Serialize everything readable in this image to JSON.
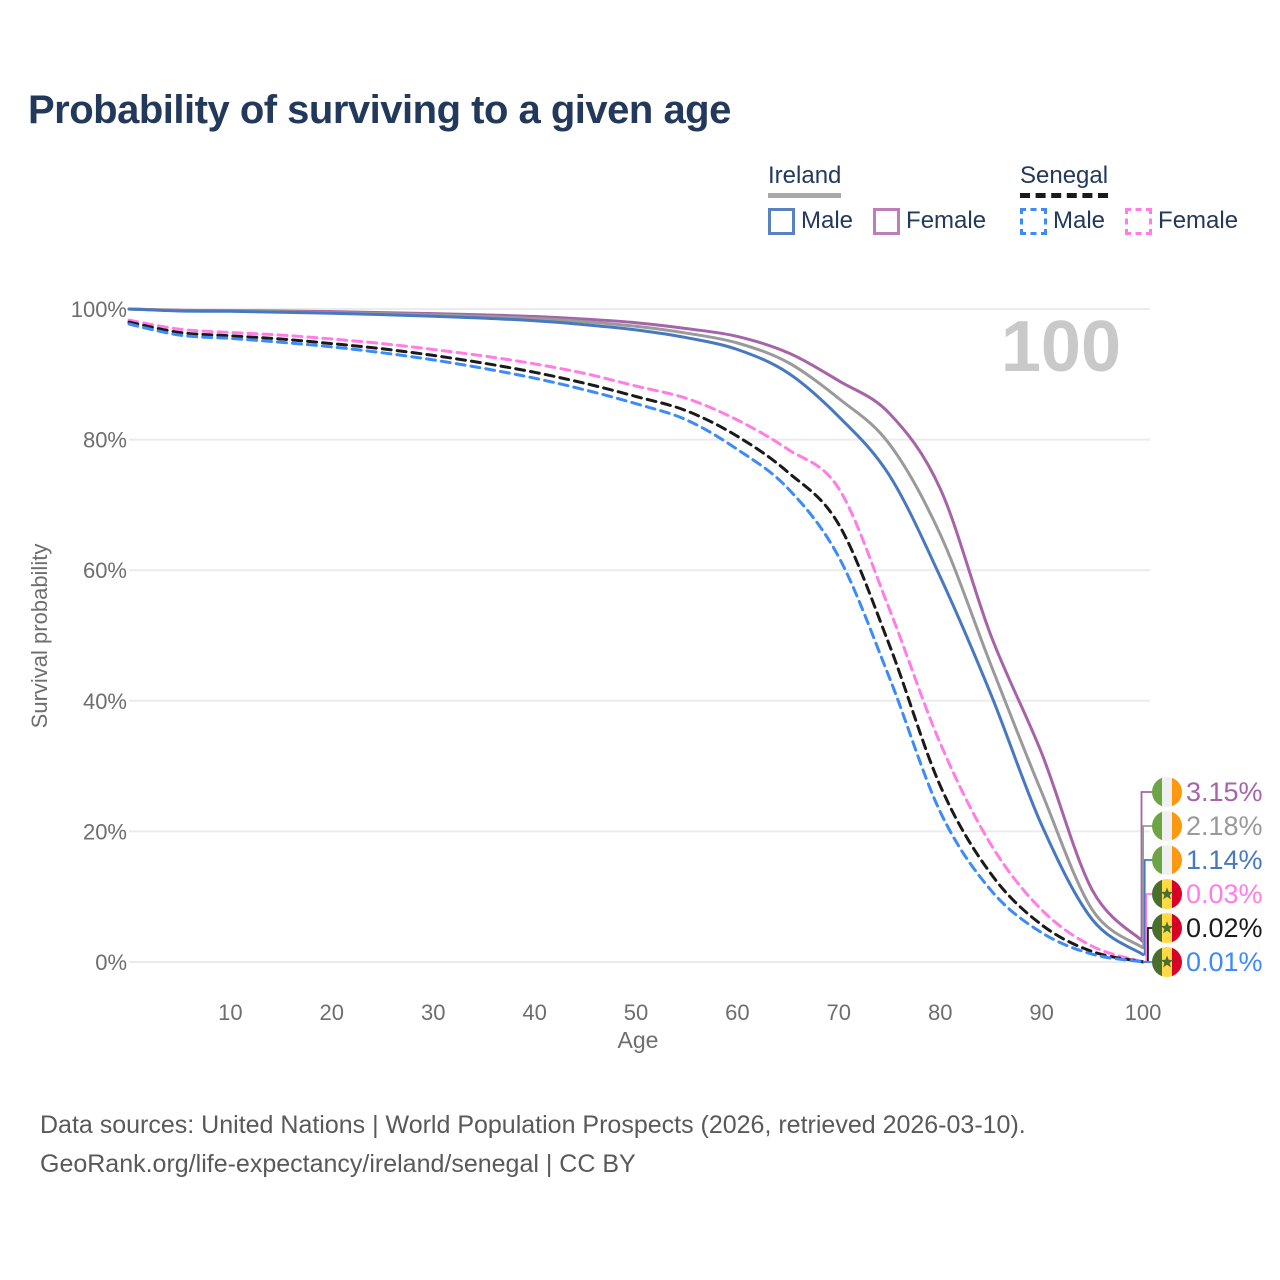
{
  "title": "Probability of surviving to a given age",
  "watermark": "100",
  "legend": {
    "ireland": {
      "header": "Ireland",
      "male": "Male",
      "female": "Female"
    },
    "senegal": {
      "header": "Senegal",
      "male": "Male",
      "female": "Female"
    }
  },
  "footer": {
    "line1": "Data sources: United Nations | World Population Prospects (2026, retrieved 2026-03-10).",
    "line2": "GeoRank.org/life-expectancy/ireland/senegal | CC BY"
  },
  "colors": {
    "title_text": "#22395c",
    "axis_text": "#6e6e6e",
    "grid": "#ebebeb",
    "watermark": "#c9c9c9",
    "footer_text": "#595959",
    "ireland_rule": "#a9a9a9",
    "senegal_rule": "#1a1a1a"
  },
  "chart_data": {
    "type": "line",
    "title": "Probability of surviving to a given age",
    "xlabel": "Age",
    "ylabel": "Survival probability",
    "xlim": [
      0,
      100
    ],
    "ylim": [
      0,
      100
    ],
    "x_ticks": [
      10,
      20,
      30,
      40,
      50,
      60,
      70,
      80,
      90,
      100
    ],
    "y_ticks": [
      0,
      20,
      40,
      60,
      80,
      100
    ],
    "y_tick_labels": [
      "0%",
      "20%",
      "40%",
      "60%",
      "80%",
      "100%"
    ],
    "grid": "horizontal",
    "legend_position": "top-right",
    "watermark_max_age": "100",
    "x": [
      0,
      5,
      10,
      15,
      20,
      25,
      30,
      35,
      40,
      45,
      50,
      55,
      60,
      65,
      70,
      75,
      80,
      85,
      90,
      95,
      100
    ],
    "series": [
      {
        "id": "ireland-female",
        "name": "Ireland Female",
        "country": "Ireland",
        "sex": "Female",
        "line_style": "solid",
        "color": "#a763a8",
        "flag": "ie",
        "end_label": "3.15%",
        "values": [
          100,
          99.8,
          99.75,
          99.7,
          99.6,
          99.45,
          99.3,
          99.1,
          98.85,
          98.45,
          97.9,
          97.0,
          95.8,
          93.3,
          89.0,
          84.0,
          72.5,
          50.0,
          32.0,
          11.0,
          3.15
        ]
      },
      {
        "id": "ireland-both",
        "name": "Ireland Both sexes",
        "country": "Ireland",
        "sex": "All",
        "line_style": "solid",
        "color": "#9a9a9a",
        "flag": "ie",
        "end_label": "2.18%",
        "values": [
          100,
          99.75,
          99.7,
          99.6,
          99.45,
          99.3,
          99.1,
          98.85,
          98.55,
          98.05,
          97.35,
          96.3,
          94.8,
          91.8,
          86.3,
          79.3,
          65.5,
          45.5,
          26.0,
          8.0,
          2.18
        ]
      },
      {
        "id": "ireland-male",
        "name": "Ireland Male",
        "country": "Ireland",
        "sex": "Male",
        "line_style": "solid",
        "color": "#4878bf",
        "flag": "ie",
        "end_label": "1.14%",
        "values": [
          100,
          99.7,
          99.65,
          99.5,
          99.35,
          99.15,
          98.9,
          98.6,
          98.2,
          97.6,
          96.8,
          95.6,
          93.8,
          90.2,
          83.5,
          74.5,
          59.0,
          41.0,
          21.0,
          6.5,
          1.14
        ]
      },
      {
        "id": "senegal-female",
        "name": "Senegal Female",
        "country": "Senegal",
        "sex": "Female",
        "line_style": "dashed",
        "color": "#ff7de4",
        "flag": "sn",
        "end_label": "0.03%",
        "values": [
          98.3,
          96.9,
          96.4,
          96.0,
          95.4,
          94.7,
          93.8,
          92.8,
          91.6,
          90.1,
          88.2,
          86.3,
          83.0,
          78.5,
          72.5,
          54.0,
          33.5,
          18.0,
          8.0,
          2.4,
          0.03
        ]
      },
      {
        "id": "senegal-both",
        "name": "Senegal Both sexes",
        "country": "Senegal",
        "sex": "All",
        "line_style": "dashed",
        "color": "#1a1a1a",
        "flag": "sn",
        "end_label": "0.02%",
        "values": [
          98.0,
          96.4,
          95.9,
          95.4,
          94.7,
          93.9,
          92.9,
          91.7,
          90.3,
          88.6,
          86.6,
          84.4,
          80.5,
          75.0,
          67.0,
          48.5,
          27.0,
          13.5,
          5.7,
          1.6,
          0.02
        ]
      },
      {
        "id": "senegal-male",
        "name": "Senegal Male",
        "country": "Senegal",
        "sex": "Male",
        "line_style": "dashed",
        "color": "#3d8bf8",
        "flag": "sn",
        "end_label": "0.01%",
        "values": [
          97.7,
          96.0,
          95.5,
          94.9,
          94.2,
          93.3,
          92.2,
          90.9,
          89.4,
          87.6,
          85.5,
          83.0,
          78.5,
          72.5,
          62.0,
          43.5,
          23.0,
          11.0,
          4.5,
          1.2,
          0.01
        ]
      }
    ],
    "flag_colors": {
      "ie": [
        "#6da544",
        "#f0f0f0",
        "#ff9811"
      ],
      "sn": [
        "#496e2d",
        "#ffda44",
        "#d80027"
      ],
      "sn_star": "#496e2d"
    }
  }
}
